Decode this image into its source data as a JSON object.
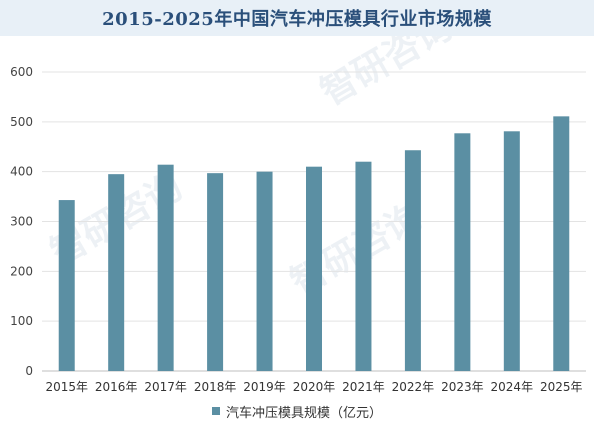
{
  "title": "2015-2025年中国汽车冲压模具行业市场规模",
  "watermark": "智研咨询",
  "chart_data": {
    "type": "bar",
    "title": "2015-2025年中国汽车冲压模具行业市场规模",
    "categories": [
      "2015年",
      "2016年",
      "2017年",
      "2018年",
      "2019年",
      "2020年",
      "2021年",
      "2022年",
      "2023年",
      "2024年",
      "2025年"
    ],
    "series": [
      {
        "name": "汽车冲压模具规模（亿元）",
        "values": [
          343,
          395,
          414,
          397,
          400,
          410,
          420,
          443,
          477,
          481,
          511
        ],
        "color": "#5b8fa3"
      }
    ],
    "xlabel": "",
    "ylabel": "",
    "ylim": [
      0,
      600
    ],
    "yticks": [
      0,
      100,
      200,
      300,
      400,
      500,
      600
    ],
    "grid": true,
    "legend_position": "bottom"
  }
}
